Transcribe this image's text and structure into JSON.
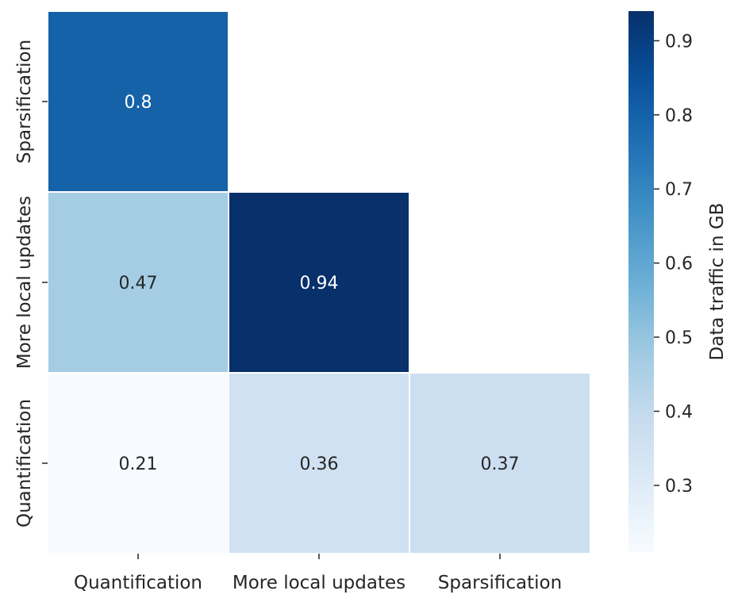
{
  "chart_data": {
    "type": "heatmap",
    "rows": [
      "Sparsification",
      "More local updates",
      "Quantification"
    ],
    "columns": [
      "Quantification",
      "More local updates",
      "Sparsification"
    ],
    "cells": [
      [
        0.8,
        null,
        null
      ],
      [
        0.47,
        0.94,
        null
      ],
      [
        0.21,
        0.36,
        0.37
      ]
    ],
    "cell_labels": [
      [
        "0.8",
        "",
        ""
      ],
      [
        "0.47",
        "0.94",
        ""
      ],
      [
        "0.21",
        "0.36",
        "0.37"
      ]
    ],
    "colormap": "Blues",
    "vmin": 0.21,
    "vmax": 0.94,
    "colorbar": {
      "label": "Data traffic in GB",
      "ticks": [
        0.3,
        0.4,
        0.5,
        0.6,
        0.7,
        0.8,
        0.9
      ],
      "tick_labels": [
        "0.3",
        "0.4",
        "0.5",
        "0.6",
        "0.7",
        "0.8",
        "0.9"
      ]
    },
    "mask": "upper triangle hidden",
    "title": "",
    "xlabel": "",
    "ylabel": ""
  },
  "colors": {
    "cell_border": "#ffffff",
    "tick_color": "#262626",
    "text_dark": "#262626",
    "text_light": "#ffffff"
  }
}
